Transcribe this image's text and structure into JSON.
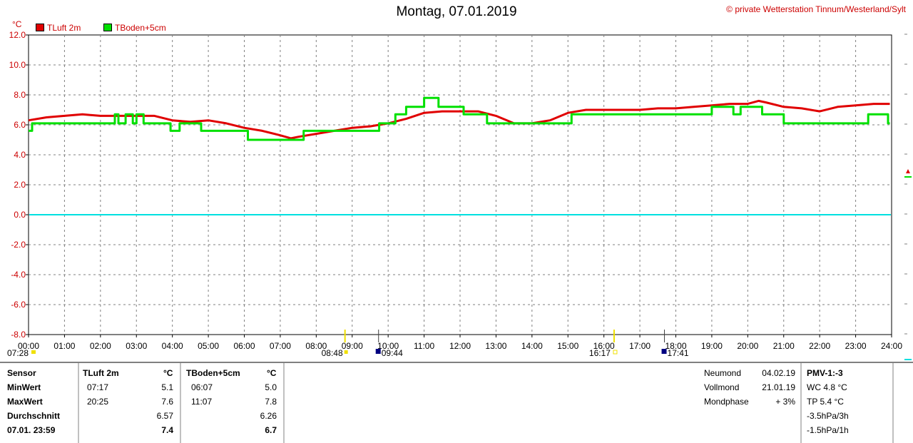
{
  "title": "Montag, 07.01.2019",
  "credit": "© private Wetterstation Tinnum/Westerland/Sylt",
  "unit_label": "°C",
  "colors": {
    "tluft": "#e00000",
    "tboden": "#00e000",
    "zero": "#00e0e0",
    "grid": "#808080",
    "sun": "#f0e000"
  },
  "chart_data": {
    "type": "line",
    "ylim": [
      -8,
      12
    ],
    "xlim": [
      0,
      24
    ],
    "y_ticks": [
      "12.0",
      "10.0",
      "8.0",
      "6.0",
      "4.0",
      "2.0",
      "0.0",
      "-2.0",
      "-4.0",
      "-6.0",
      "-8.0"
    ],
    "x_ticks": [
      "00:00",
      "01:00",
      "02:00",
      "03:00",
      "04:00",
      "05:00",
      "06:00",
      "07:00",
      "08:00",
      "09:00",
      "10:00",
      "11:00",
      "12:00",
      "13:00",
      "14:00",
      "15:00",
      "16:00",
      "17:00",
      "18:00",
      "19:00",
      "20:00",
      "21:00",
      "22:00",
      "23:00",
      "24:00"
    ],
    "grid": true,
    "series": [
      {
        "name": "TLuft 2m",
        "color": "#e00000",
        "x": [
          0,
          0.5,
          1,
          1.5,
          2,
          2.5,
          3,
          3.5,
          4,
          4.5,
          5,
          5.5,
          6,
          6.5,
          7,
          7.3,
          7.5,
          8,
          8.5,
          9,
          9.5,
          10,
          10.5,
          11,
          11.5,
          12,
          12.5,
          13,
          13.5,
          14,
          14.5,
          15,
          15.5,
          16,
          16.5,
          17,
          17.5,
          18,
          18.5,
          19,
          19.5,
          20,
          20.3,
          20.5,
          21,
          21.5,
          22,
          22.5,
          23,
          23.5,
          23.95
        ],
        "y": [
          6.3,
          6.5,
          6.6,
          6.7,
          6.6,
          6.6,
          6.6,
          6.6,
          6.3,
          6.2,
          6.3,
          6.1,
          5.8,
          5.6,
          5.3,
          5.1,
          5.2,
          5.4,
          5.6,
          5.8,
          5.9,
          6.1,
          6.4,
          6.8,
          6.9,
          6.9,
          6.9,
          6.6,
          6.1,
          6.1,
          6.3,
          6.8,
          7.0,
          7.0,
          7.0,
          7.0,
          7.1,
          7.1,
          7.2,
          7.3,
          7.4,
          7.4,
          7.6,
          7.5,
          7.2,
          7.1,
          6.9,
          7.2,
          7.3,
          7.4,
          7.4
        ]
      },
      {
        "name": "TBoden+5cm",
        "color": "#00e000",
        "x": [
          0,
          0.1,
          0.1,
          2.4,
          2.4,
          2.5,
          2.5,
          2.7,
          2.7,
          2.9,
          2.9,
          3.0,
          3.0,
          3.2,
          3.2,
          3.95,
          3.95,
          4.2,
          4.2,
          4.8,
          4.8,
          6.1,
          6.1,
          7.65,
          7.65,
          9.75,
          9.75,
          10.2,
          10.2,
          10.5,
          10.5,
          11.0,
          11.0,
          11.4,
          11.4,
          12.1,
          12.1,
          12.75,
          12.75,
          13.05,
          13.05,
          15.1,
          15.1,
          19.0,
          19.0,
          19.6,
          19.6,
          19.8,
          19.8,
          20.4,
          20.4,
          20.7,
          20.7,
          21.0,
          21.0,
          21.8,
          21.8,
          23.35,
          23.35,
          23.9,
          23.9,
          23.95
        ],
        "y": [
          5.6,
          5.6,
          6.1,
          6.1,
          6.7,
          6.7,
          6.1,
          6.1,
          6.7,
          6.7,
          6.1,
          6.1,
          6.7,
          6.7,
          6.1,
          6.1,
          5.6,
          5.6,
          6.1,
          6.1,
          5.6,
          5.6,
          5.0,
          5.0,
          5.6,
          5.6,
          6.1,
          6.1,
          6.7,
          6.7,
          7.2,
          7.2,
          7.8,
          7.8,
          7.2,
          7.2,
          6.7,
          6.7,
          6.1,
          6.1,
          6.1,
          6.1,
          6.7,
          6.7,
          7.2,
          7.2,
          6.7,
          6.7,
          7.2,
          7.2,
          6.7,
          6.7,
          6.7,
          6.7,
          6.1,
          6.1,
          6.1,
          6.1,
          6.7,
          6.7,
          6.1,
          6.1
        ]
      }
    ]
  },
  "legend": [
    {
      "label": "TLuft 2m",
      "color": "#e00000"
    },
    {
      "label": "TBoden+5cm",
      "color": "#00e000"
    }
  ],
  "markers": {
    "sunrise": "08:48",
    "sunset": "16:17",
    "moonrise": "09:44",
    "moonset": "17:41",
    "civil_begin": "07:28"
  },
  "table": {
    "header": {
      "sensor": "Sensor",
      "col1": "TLuft 2m",
      "unit1": "°C",
      "col2": "TBoden+5cm",
      "unit2": "°C"
    },
    "rows": [
      {
        "label": "MinWert",
        "t1": "07:17",
        "v1": "5.1",
        "t2": "06:07",
        "v2": "5.0"
      },
      {
        "label": "MaxWert",
        "t1": "20:25",
        "v1": "7.6",
        "t2": "11:07",
        "v2": "7.8"
      },
      {
        "label": "Durchschnitt",
        "t1": "",
        "v1": "6.57",
        "t2": "",
        "v2": "6.26"
      },
      {
        "label": "07.01. 23:59",
        "t1": "",
        "v1": "7.4",
        "t2": "",
        "v2": "6.7"
      }
    ]
  },
  "moon": [
    {
      "label": "Neumond",
      "value": "04.02.19"
    },
    {
      "label": "Vollmond",
      "value": "21.01.19"
    },
    {
      "label": "Mondphase",
      "value": "+ 3%"
    }
  ],
  "pmv": {
    "title": "PMV-1:-3",
    "lines": [
      "WC 4.8 °C",
      "TP 5.4 °C",
      "-3.5hPa/3h",
      "-1.5hPa/1h"
    ]
  }
}
